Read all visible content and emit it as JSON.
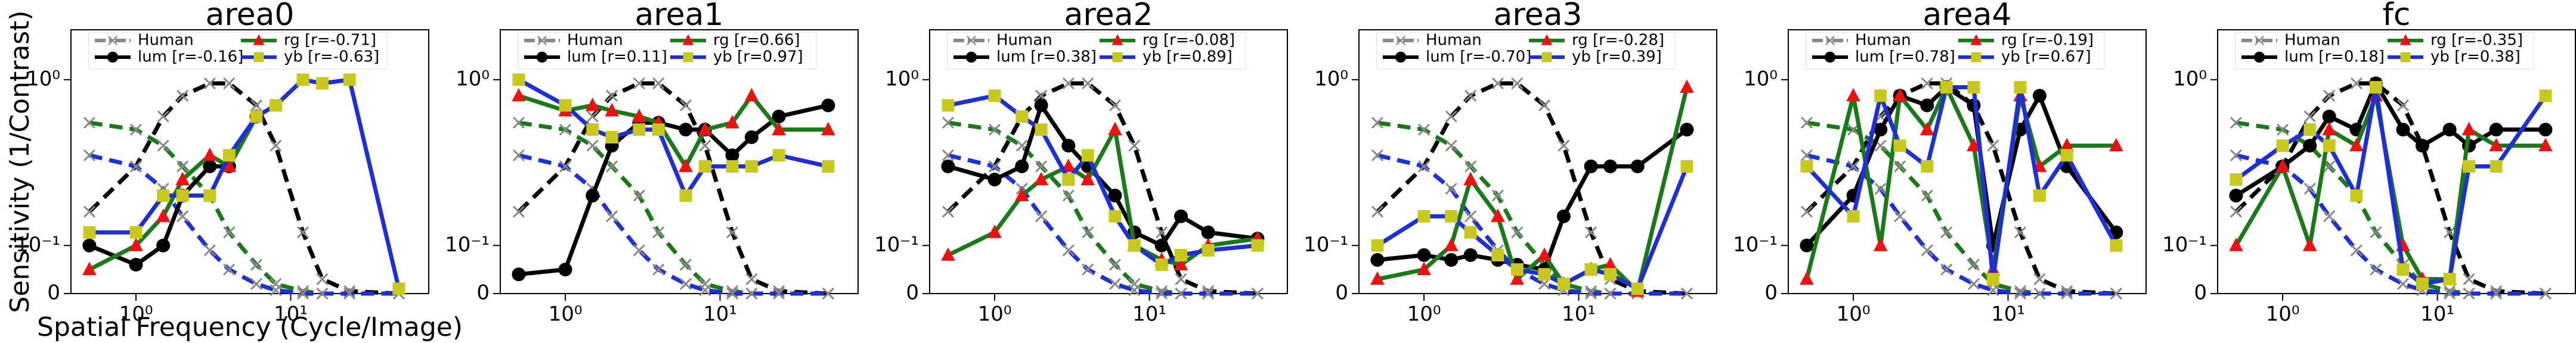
{
  "chart_data": [
    {
      "type": "line",
      "title": "area0",
      "ylabel": "Sensitivity (1/Contrast)",
      "xlabel": "Spatial Frequency (Cycle/Image)",
      "xscale": "log",
      "yscale": "symlog",
      "linthresh": 0.1,
      "x": [
        0.5,
        1,
        1.5,
        2,
        3,
        4,
        6,
        8,
        12,
        16,
        24,
        50
      ],
      "xlim": [
        0.38,
        78
      ],
      "xticks": [
        {
          "value": 1,
          "label": "10⁰"
        },
        {
          "value": 10,
          "label": "10¹"
        }
      ],
      "ylim": [
        0,
        2
      ],
      "yticks": [
        0,
        {
          "value": 0.1,
          "label": "10⁻¹"
        },
        {
          "value": 1,
          "label": "10⁰"
        }
      ],
      "human": {
        "name": "Human",
        "color": "#888888",
        "curves": [
          {
            "color": "#000000",
            "values": [
              0.16,
              0.3,
              0.6,
              0.8,
              0.95,
              0.95,
              0.7,
              0.4,
              0.12,
              0.03,
              0.005,
              0
            ]
          },
          {
            "color": "#1a7a1a",
            "values": [
              0.55,
              0.5,
              0.4,
              0.3,
              0.2,
              0.12,
              0.06,
              0.02,
              0.005,
              0,
              0,
              0
            ]
          },
          {
            "color": "#1f2fd6",
            "values": [
              0.35,
              0.3,
              0.22,
              0.15,
              0.09,
              0.05,
              0.02,
              0.007,
              0,
              0,
              0,
              0
            ]
          }
        ]
      },
      "series": [
        {
          "name": "lum [r=-0.16]",
          "color": "#000000",
          "marker": "circle",
          "marker_color": "#000000",
          "values": [
            0.1,
            0.06,
            0.1,
            0.2,
            0.3,
            0.3,
            0.6,
            null,
            null,
            null,
            null,
            null
          ]
        },
        {
          "name": "rg [r=-0.71]",
          "color": "#1a7a1a",
          "marker": "triangle",
          "marker_color": "#ee1111",
          "values": [
            0.05,
            0.1,
            0.15,
            0.25,
            0.35,
            0.3,
            0.6,
            null,
            null,
            null,
            null,
            null
          ]
        },
        {
          "name": "yb [r=-0.63]",
          "color": "#1f2fd6",
          "marker": "square",
          "marker_color": "#c8c81e",
          "values": [
            0.12,
            0.12,
            0.2,
            0.2,
            0.2,
            0.35,
            0.6,
            0.7,
            1.0,
            0.95,
            1.0,
            0.01
          ]
        }
      ]
    },
    {
      "type": "line",
      "title": "area1",
      "xscale": "log",
      "yscale": "symlog",
      "linthresh": 0.1,
      "x": [
        0.5,
        1,
        1.5,
        2,
        3,
        4,
        6,
        8,
        12,
        16,
        24,
        50
      ],
      "xlim": [
        0.38,
        78
      ],
      "xticks": [
        {
          "value": 1,
          "label": "10⁰"
        },
        {
          "value": 10,
          "label": "10¹"
        }
      ],
      "ylim": [
        0,
        2
      ],
      "yticks": [
        0,
        {
          "value": 0.1,
          "label": "10⁻¹"
        },
        {
          "value": 1,
          "label": "10⁰"
        }
      ],
      "human": {
        "name": "Human",
        "color": "#888888",
        "curves": [
          {
            "color": "#000000",
            "values": [
              0.16,
              0.3,
              0.6,
              0.8,
              0.95,
              0.95,
              0.7,
              0.4,
              0.12,
              0.03,
              0.005,
              0
            ]
          },
          {
            "color": "#1a7a1a",
            "values": [
              0.55,
              0.5,
              0.4,
              0.3,
              0.2,
              0.12,
              0.06,
              0.02,
              0.005,
              0,
              0,
              0
            ]
          },
          {
            "color": "#1f2fd6",
            "values": [
              0.35,
              0.3,
              0.22,
              0.15,
              0.09,
              0.05,
              0.02,
              0.007,
              0,
              0,
              0,
              0
            ]
          }
        ]
      },
      "series": [
        {
          "name": "lum [r=0.11]",
          "color": "#000000",
          "marker": "circle",
          "marker_color": "#000000",
          "values": [
            0.04,
            0.05,
            0.2,
            0.4,
            0.55,
            0.55,
            0.5,
            0.5,
            0.35,
            0.45,
            0.6,
            0.7
          ]
        },
        {
          "name": "rg [r=0.66]",
          "color": "#1a7a1a",
          "marker": "triangle",
          "marker_color": "#ee1111",
          "values": [
            0.8,
            0.65,
            0.7,
            0.65,
            0.6,
            0.55,
            0.3,
            0.5,
            0.55,
            0.8,
            0.5,
            0.5
          ]
        },
        {
          "name": "yb [r=0.97]",
          "color": "#1f2fd6",
          "marker": "square",
          "marker_color": "#c8c81e",
          "values": [
            1.0,
            0.7,
            0.5,
            0.45,
            0.5,
            0.5,
            0.2,
            0.3,
            0.3,
            0.3,
            0.35,
            0.3
          ]
        }
      ]
    },
    {
      "type": "line",
      "title": "area2",
      "xscale": "log",
      "yscale": "symlog",
      "linthresh": 0.1,
      "x": [
        0.5,
        1,
        1.5,
        2,
        3,
        4,
        6,
        8,
        12,
        16,
        24,
        50
      ],
      "xlim": [
        0.38,
        78
      ],
      "xticks": [
        {
          "value": 1,
          "label": "10⁰"
        },
        {
          "value": 10,
          "label": "10¹"
        }
      ],
      "ylim": [
        0,
        2
      ],
      "yticks": [
        0,
        {
          "value": 0.1,
          "label": "10⁻¹"
        },
        {
          "value": 1,
          "label": "10⁰"
        }
      ],
      "human": {
        "name": "Human",
        "color": "#888888",
        "curves": [
          {
            "color": "#000000",
            "values": [
              0.16,
              0.3,
              0.6,
              0.8,
              0.95,
              0.95,
              0.7,
              0.4,
              0.12,
              0.03,
              0.005,
              0
            ]
          },
          {
            "color": "#1a7a1a",
            "values": [
              0.55,
              0.5,
              0.4,
              0.3,
              0.2,
              0.12,
              0.06,
              0.02,
              0.005,
              0,
              0,
              0
            ]
          },
          {
            "color": "#1f2fd6",
            "values": [
              0.35,
              0.3,
              0.22,
              0.15,
              0.09,
              0.05,
              0.02,
              0.007,
              0,
              0,
              0,
              0
            ]
          }
        ]
      },
      "series": [
        {
          "name": "lum [r=0.38]",
          "color": "#000000",
          "marker": "circle",
          "marker_color": "#000000",
          "values": [
            0.3,
            0.25,
            0.3,
            0.7,
            0.4,
            0.3,
            0.2,
            0.12,
            0.1,
            0.15,
            0.12,
            0.11
          ]
        },
        {
          "name": "rg [r=-0.08]",
          "color": "#1a7a1a",
          "marker": "triangle",
          "marker_color": "#ee1111",
          "values": [
            0.08,
            0.12,
            0.2,
            0.25,
            0.3,
            0.25,
            0.5,
            0.1,
            0.07,
            0.06,
            0.1,
            0.11
          ]
        },
        {
          "name": "yb [r=0.89]",
          "color": "#1f2fd6",
          "marker": "square",
          "marker_color": "#c8c81e",
          "values": [
            0.7,
            0.8,
            0.6,
            0.5,
            0.25,
            0.35,
            0.15,
            0.1,
            0.06,
            0.08,
            0.09,
            0.1
          ]
        }
      ]
    },
    {
      "type": "line",
      "title": "area3",
      "xscale": "log",
      "yscale": "symlog",
      "linthresh": 0.1,
      "x": [
        0.5,
        1,
        1.5,
        2,
        3,
        4,
        6,
        8,
        12,
        16,
        24,
        50
      ],
      "xlim": [
        0.38,
        78
      ],
      "xticks": [
        {
          "value": 1,
          "label": "10⁰"
        },
        {
          "value": 10,
          "label": "10¹"
        }
      ],
      "ylim": [
        0,
        2
      ],
      "yticks": [
        0,
        {
          "value": 0.1,
          "label": "10⁻¹"
        },
        {
          "value": 1,
          "label": "10⁰"
        }
      ],
      "human": {
        "name": "Human",
        "color": "#888888",
        "curves": [
          {
            "color": "#000000",
            "values": [
              0.16,
              0.3,
              0.6,
              0.8,
              0.95,
              0.95,
              0.7,
              0.4,
              0.12,
              0.03,
              0.005,
              0
            ]
          },
          {
            "color": "#1a7a1a",
            "values": [
              0.55,
              0.5,
              0.4,
              0.3,
              0.2,
              0.12,
              0.06,
              0.02,
              0.005,
              0,
              0,
              0
            ]
          },
          {
            "color": "#1f2fd6",
            "values": [
              0.35,
              0.3,
              0.22,
              0.15,
              0.09,
              0.05,
              0.02,
              0.007,
              0,
              0,
              0,
              0
            ]
          }
        ]
      },
      "series": [
        {
          "name": "lum [r=-0.70]",
          "color": "#000000",
          "marker": "circle",
          "marker_color": "#000000",
          "values": [
            0.07,
            0.08,
            0.07,
            0.08,
            0.07,
            0.06,
            0.05,
            0.15,
            0.3,
            0.3,
            0.3,
            0.5
          ]
        },
        {
          "name": "rg [r=-0.28]",
          "color": "#1a7a1a",
          "marker": "triangle",
          "marker_color": "#ee1111",
          "values": [
            0.03,
            0.05,
            0.1,
            0.25,
            0.15,
            0.03,
            0.08,
            0.02,
            0.05,
            0.06,
            0.005,
            0.9
          ]
        },
        {
          "name": "yb [r=0.39]",
          "color": "#1f2fd6",
          "marker": "square",
          "marker_color": "#c8c81e",
          "values": [
            0.1,
            0.15,
            0.15,
            0.12,
            0.08,
            0.05,
            0.04,
            0.02,
            0.05,
            0.04,
            0.01,
            0.3
          ]
        }
      ]
    },
    {
      "type": "line",
      "title": "area4",
      "xscale": "log",
      "yscale": "symlog",
      "linthresh": 0.1,
      "x": [
        0.5,
        1,
        1.5,
        2,
        3,
        4,
        6,
        8,
        12,
        16,
        24,
        50
      ],
      "xlim": [
        0.38,
        78
      ],
      "xticks": [
        {
          "value": 1,
          "label": "10⁰"
        },
        {
          "value": 10,
          "label": "10¹"
        }
      ],
      "ylim": [
        0,
        2
      ],
      "yticks": [
        0,
        {
          "value": 0.1,
          "label": "10⁻¹"
        },
        {
          "value": 1,
          "label": "10⁰"
        }
      ],
      "human": {
        "name": "Human",
        "color": "#888888",
        "curves": [
          {
            "color": "#000000",
            "values": [
              0.16,
              0.3,
              0.6,
              0.8,
              0.95,
              0.95,
              0.7,
              0.4,
              0.12,
              0.03,
              0.005,
              0
            ]
          },
          {
            "color": "#1a7a1a",
            "values": [
              0.55,
              0.5,
              0.4,
              0.3,
              0.2,
              0.12,
              0.06,
              0.02,
              0.005,
              0,
              0,
              0
            ]
          },
          {
            "color": "#1f2fd6",
            "values": [
              0.35,
              0.3,
              0.22,
              0.15,
              0.09,
              0.05,
              0.02,
              0.007,
              0,
              0,
              0,
              0
            ]
          }
        ]
      },
      "series": [
        {
          "name": "lum [r=0.78]",
          "color": "#000000",
          "marker": "circle",
          "marker_color": "#000000",
          "values": [
            0.1,
            0.2,
            0.5,
            0.8,
            0.7,
            0.9,
            0.7,
            0.1,
            0.5,
            0.8,
            0.3,
            0.12
          ]
        },
        {
          "name": "rg [r=-0.19]",
          "color": "#1a7a1a",
          "marker": "triangle",
          "marker_color": "#ee1111",
          "values": [
            0.03,
            0.8,
            0.1,
            0.8,
            0.5,
            0.9,
            0.4,
            0.05,
            0.8,
            0.3,
            0.4,
            0.4
          ]
        },
        {
          "name": "yb [r=0.67]",
          "color": "#1f2fd6",
          "marker": "square",
          "marker_color": "#c8c81e",
          "values": [
            0.3,
            0.15,
            0.8,
            0.4,
            0.3,
            0.9,
            0.9,
            0.03,
            0.9,
            0.2,
            0.35,
            0.1
          ]
        }
      ]
    },
    {
      "type": "line",
      "title": "fc",
      "xscale": "log",
      "yscale": "symlog",
      "linthresh": 0.1,
      "x": [
        0.5,
        1,
        1.5,
        2,
        3,
        4,
        6,
        8,
        12,
        16,
        24,
        50
      ],
      "xlim": [
        0.38,
        78
      ],
      "xticks": [
        {
          "value": 1,
          "label": "10⁰"
        },
        {
          "value": 10,
          "label": "10¹"
        }
      ],
      "ylim": [
        0,
        2
      ],
      "yticks": [
        0,
        {
          "value": 0.1,
          "label": "10⁻¹"
        },
        {
          "value": 1,
          "label": "10⁰"
        }
      ],
      "human": {
        "name": "Human",
        "color": "#888888",
        "curves": [
          {
            "color": "#000000",
            "values": [
              0.16,
              0.3,
              0.6,
              0.8,
              0.95,
              0.95,
              0.7,
              0.4,
              0.12,
              0.03,
              0.005,
              0
            ]
          },
          {
            "color": "#1a7a1a",
            "values": [
              0.55,
              0.5,
              0.4,
              0.3,
              0.2,
              0.12,
              0.06,
              0.02,
              0.005,
              0,
              0,
              0
            ]
          },
          {
            "color": "#1f2fd6",
            "values": [
              0.35,
              0.3,
              0.22,
              0.15,
              0.09,
              0.05,
              0.02,
              0.007,
              0,
              0,
              0,
              0
            ]
          }
        ]
      },
      "series": [
        {
          "name": "lum [r=0.18]",
          "color": "#000000",
          "marker": "circle",
          "marker_color": "#000000",
          "values": [
            0.2,
            0.3,
            0.4,
            0.6,
            0.5,
            0.95,
            0.5,
            0.4,
            0.5,
            0.4,
            0.5,
            0.5
          ]
        },
        {
          "name": "rg [r=-0.35]",
          "color": "#1a7a1a",
          "marker": "triangle",
          "marker_color": "#ee1111",
          "values": [
            0.1,
            0.3,
            0.1,
            0.5,
            0.4,
            0.8,
            0.1,
            0.03,
            0.03,
            0.5,
            0.4,
            0.4
          ]
        },
        {
          "name": "yb [r=0.38]",
          "color": "#1f2fd6",
          "marker": "square",
          "marker_color": "#c8c81e",
          "values": [
            0.25,
            0.4,
            0.5,
            0.4,
            0.2,
            0.9,
            0.05,
            0.02,
            0.03,
            0.3,
            0.3,
            0.8
          ]
        }
      ]
    }
  ]
}
